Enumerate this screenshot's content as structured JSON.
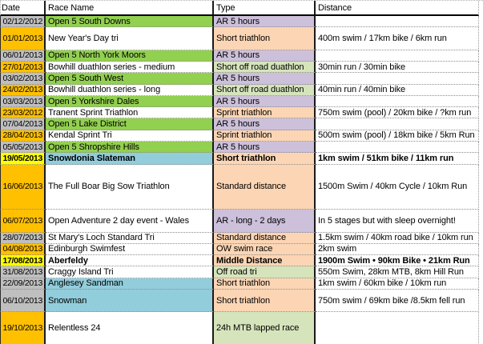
{
  "header": {
    "columns": [
      "Date",
      "Race Name",
      "Type",
      "Distance"
    ]
  },
  "colors": {
    "date_orange": "#FFC000",
    "date_grey": "#BFBFBF",
    "highlight_yellow": "#FFFF00",
    "name_green": "#92D050",
    "name_blue": "#92CDDC",
    "type_purple": "#CCC0DA",
    "type_peach": "#FCD5B4",
    "type_green": "#D6E4BC",
    "white": "#FFFFFF"
  },
  "rows": [
    {
      "date": "02/12/2012",
      "date_bg": "date_grey",
      "name": "Open 5 South Downs",
      "name_bg": "name_green",
      "type": "AR 5 hours",
      "type_bg": "type_purple",
      "distance": "",
      "bold": false
    },
    {
      "date": "01/01/2013",
      "date_bg": "date_orange",
      "name": "New Year's Day tri",
      "name_bg": "white",
      "type": "Short triathlon",
      "type_bg": "type_peach",
      "distance": "400m swim / 17km bike / 6km run",
      "bold": false
    },
    {
      "date": "06/01/2013",
      "date_bg": "date_grey",
      "name": "Open 5 North York Moors",
      "name_bg": "name_green",
      "type": "AR 5 hours",
      "type_bg": "type_purple",
      "distance": "",
      "bold": false
    },
    {
      "date": "27/01/2013",
      "date_bg": "date_orange",
      "name": "Bowhill duathlon series - medium",
      "name_bg": "white",
      "type": "Short off road duathlon",
      "type_bg": "type_green",
      "distance": "30min run / 30min bike",
      "bold": false
    },
    {
      "date": "03/02/2013",
      "date_bg": "date_grey",
      "name": "Open 5 South West",
      "name_bg": "name_green",
      "type": "AR 5 hours",
      "type_bg": "type_purple",
      "distance": "",
      "bold": false
    },
    {
      "date": "24/02/2013",
      "date_bg": "date_orange",
      "name": "Bowhill duathlon series - long",
      "name_bg": "white",
      "type": "Short off road duathlon",
      "type_bg": "type_green",
      "distance": "40min run / 40min bike",
      "bold": false
    },
    {
      "date": "03/03/2013",
      "date_bg": "date_grey",
      "name": "Open 5 Yorkshire Dales",
      "name_bg": "name_green",
      "type": "AR 5 hours",
      "type_bg": "type_purple",
      "distance": "",
      "bold": false
    },
    {
      "date": "23/03/2012",
      "date_bg": "date_orange",
      "name": "Tranent Sprint Triathlon",
      "name_bg": "white",
      "type": "Sprint triathlon",
      "type_bg": "type_peach",
      "distance": "750m swim (pool) / 20km bike / ?km run",
      "bold": false
    },
    {
      "date": "07/04/2013",
      "date_bg": "date_grey",
      "name": "Open 5 Lake District",
      "name_bg": "name_green",
      "type": "AR 5 hours",
      "type_bg": "type_purple",
      "distance": "",
      "bold": false
    },
    {
      "date": "28/04/2013",
      "date_bg": "date_orange",
      "name": "Kendal Sprint Tri",
      "name_bg": "white",
      "type": "Sprint triathlon",
      "type_bg": "type_peach",
      "distance": "500m swim (pool) / 18km bike / 5km Run",
      "bold": false
    },
    {
      "date": "05/05/2013",
      "date_bg": "date_grey",
      "name": "Open 5 Shropshire Hills",
      "name_bg": "name_green",
      "type": "AR 5 hours",
      "type_bg": "type_purple",
      "distance": "",
      "bold": false
    },
    {
      "date": "19/05/2013",
      "date_bg": "highlight_yellow",
      "name": "Snowdonia Slateman",
      "name_bg": "name_blue",
      "type": "Short triathlon",
      "type_bg": "type_peach",
      "distance": "1km swim / 51km bike / 11km run",
      "bold": true
    },
    {
      "date": "16/06/2013",
      "date_bg": "date_orange",
      "name": "The Full Boar Big Sow Triathlon",
      "name_bg": "white",
      "type": "Standard distance",
      "type_bg": "type_peach",
      "distance": "1500m Swim / 40km Cycle / 10km Run",
      "bold": false
    },
    {
      "date": "06/07/2013",
      "date_bg": "date_orange",
      "name": "Open Adventure 2 day event - Wales",
      "name_bg": "white",
      "type": "AR - long - 2 days",
      "type_bg": "type_purple",
      "distance": "In 5 stages but with sleep overnight!",
      "bold": false
    },
    {
      "date": "28/07/2013",
      "date_bg": "date_grey",
      "name": "St Mary's Loch Standard Tri",
      "name_bg": "white",
      "type": "Standard distance",
      "type_bg": "type_peach",
      "distance": "1.5km swim / 40km road bike / 10km run",
      "bold": false
    },
    {
      "date": "04/08/2013",
      "date_bg": "date_orange",
      "name": "Edinburgh Swimfest",
      "name_bg": "white",
      "type": "OW swim race",
      "type_bg": "type_peach",
      "distance": "2km swim",
      "bold": false
    },
    {
      "date": "17/08/2013",
      "date_bg": "highlight_yellow",
      "name": "Aberfeldy",
      "name_bg": "white",
      "type": "Middle Distance",
      "type_bg": "type_peach",
      "distance": "1900m Swim • 90km Bike • 21km Run",
      "bold": true
    },
    {
      "date": "31/08/2013",
      "date_bg": "date_grey",
      "name": "Craggy Island Tri",
      "name_bg": "white",
      "type": "Off road tri",
      "type_bg": "type_green",
      "distance": "550m Swim, 28km MTB, 8km Hill Run",
      "bold": false
    },
    {
      "date": "22/09/2013",
      "date_bg": "date_grey",
      "name": "Anglesey Sandman",
      "name_bg": "name_blue",
      "type": "Short triathlon",
      "type_bg": "type_peach",
      "distance": "1km swim / 60km bike / 10km run",
      "bold": false
    },
    {
      "date": "06/10/2013",
      "date_bg": "date_grey",
      "name": "Snowman",
      "name_bg": "name_blue",
      "type": "Short triathlon",
      "type_bg": "type_peach",
      "distance": "750m swim / 69km bike /8.5km fell run",
      "bold": false
    },
    {
      "date": "19/10/2013",
      "date_bg": "date_orange",
      "name": "Relentless 24",
      "name_bg": "white",
      "type": "24h MTB lapped race",
      "type_bg": "type_green",
      "distance": "",
      "bold": false
    }
  ]
}
